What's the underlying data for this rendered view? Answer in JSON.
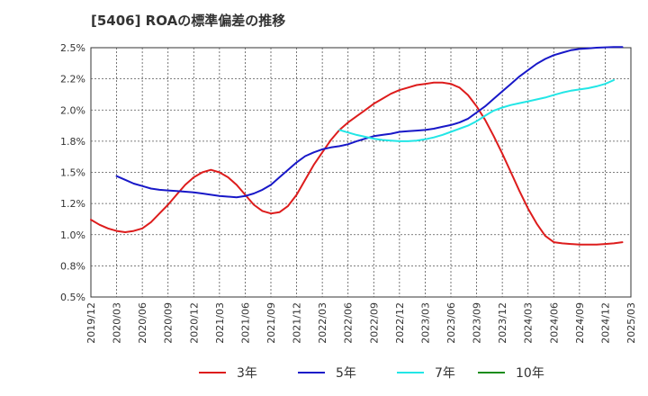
{
  "chart_data": {
    "type": "line",
    "title": "[5406]  ROAの標準偏差の推移",
    "xlabel": "",
    "ylabel": "",
    "ylim": [
      0.5,
      2.5
    ],
    "y_ticks": [
      "0.5%",
      "0.8%",
      "1.0%",
      "1.2%",
      "1.5%",
      "1.8%",
      "2.0%",
      "2.2%",
      "2.5%"
    ],
    "x_ticks": [
      "2019/12",
      "2020/03",
      "2020/06",
      "2020/09",
      "2020/12",
      "2021/03",
      "2021/06",
      "2021/09",
      "2021/12",
      "2022/03",
      "2022/06",
      "2022/09",
      "2022/12",
      "2023/03",
      "2023/06",
      "2023/09",
      "2023/12",
      "2024/03",
      "2024/06",
      "2024/09",
      "2024/12",
      "2025/03"
    ],
    "grid": true,
    "legend_position": "bottom",
    "series": [
      {
        "name": "3年",
        "color": "#dd1c1c",
        "values": [
          1.12,
          1.08,
          1.05,
          1.03,
          1.02,
          1.03,
          1.05,
          1.1,
          1.17,
          1.24,
          1.32,
          1.4,
          1.46,
          1.5,
          1.52,
          1.5,
          1.46,
          1.4,
          1.32,
          1.24,
          1.19,
          1.17,
          1.18,
          1.23,
          1.32,
          1.44,
          1.56,
          1.66,
          1.76,
          1.84,
          1.9,
          1.95,
          2.0,
          2.05,
          2.09,
          2.13,
          2.16,
          2.18,
          2.2,
          2.21,
          2.22,
          2.22,
          2.21,
          2.18,
          2.12,
          2.03,
          1.92,
          1.79,
          1.65,
          1.5,
          1.35,
          1.21,
          1.09,
          0.99,
          0.94,
          0.93,
          0.925,
          0.92,
          0.92,
          0.92,
          0.925,
          0.93,
          0.94
        ]
      },
      {
        "name": "5年",
        "color": "#1818c8",
        "values": [
          null,
          null,
          null,
          1.47,
          1.44,
          1.41,
          1.39,
          1.37,
          1.36,
          1.355,
          1.35,
          1.345,
          1.34,
          1.33,
          1.32,
          1.31,
          1.305,
          1.3,
          1.31,
          1.33,
          1.36,
          1.4,
          1.46,
          1.52,
          1.58,
          1.63,
          1.66,
          1.685,
          1.7,
          1.71,
          1.725,
          1.75,
          1.77,
          1.79,
          1.8,
          1.81,
          1.825,
          1.83,
          1.835,
          1.84,
          1.85,
          1.865,
          1.88,
          1.9,
          1.93,
          1.98,
          2.03,
          2.09,
          2.15,
          2.21,
          2.27,
          2.32,
          2.37,
          2.41,
          2.44,
          2.46,
          2.48,
          2.49,
          2.495,
          2.5,
          2.503,
          2.505,
          2.505
        ]
      },
      {
        "name": "7年",
        "color": "#22e6e6",
        "values": [
          null,
          null,
          null,
          null,
          null,
          null,
          null,
          null,
          null,
          null,
          null,
          null,
          null,
          null,
          null,
          null,
          null,
          null,
          null,
          null,
          null,
          null,
          null,
          null,
          null,
          null,
          null,
          null,
          null,
          1.84,
          1.82,
          1.8,
          1.785,
          1.77,
          1.76,
          1.755,
          1.75,
          1.75,
          1.755,
          1.765,
          1.78,
          1.8,
          1.825,
          1.85,
          1.875,
          1.91,
          1.955,
          1.995,
          2.02,
          2.04,
          2.055,
          2.07,
          2.085,
          2.1,
          2.12,
          2.14,
          2.155,
          2.165,
          2.175,
          2.19,
          2.21,
          2.24
        ]
      },
      {
        "name": "10年",
        "color": "#1a8c1a",
        "values": []
      }
    ]
  }
}
